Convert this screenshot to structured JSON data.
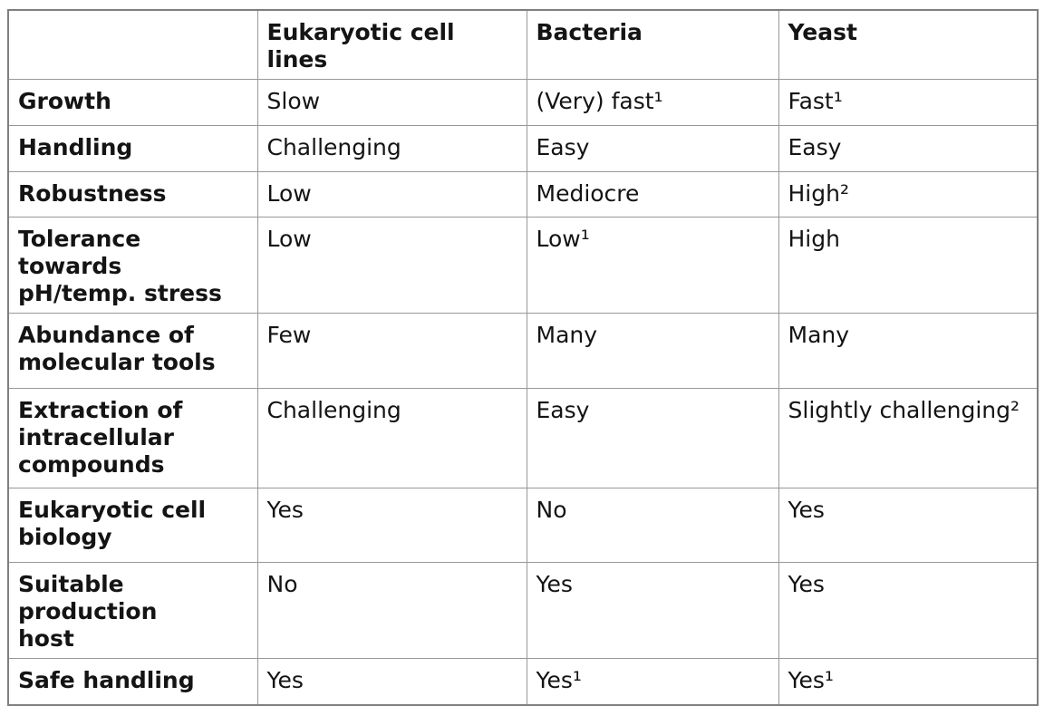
{
  "table": {
    "columns": [
      "",
      "Eukaryotic cell lines",
      "Bacteria",
      "Yeast"
    ],
    "rows": [
      {
        "label": "Growth",
        "cells": [
          "Slow",
          "(Very) fast¹",
          "Fast¹"
        ]
      },
      {
        "label": "Handling",
        "cells": [
          "Challenging",
          "Easy",
          "Easy"
        ]
      },
      {
        "label": "Robustness",
        "cells": [
          "Low",
          "Mediocre",
          "High²"
        ]
      },
      {
        "label": "Tolerance towards\npH/temp. stress",
        "cells": [
          "Low",
          "Low¹",
          "High"
        ]
      },
      {
        "label": "Abundance of\nmolecular tools",
        "cells": [
          "Few",
          "Many",
          "Many"
        ]
      },
      {
        "label": "Extraction of\nintracellular\ncompounds",
        "cells": [
          "Challenging",
          "Easy",
          "Slightly challenging²"
        ]
      },
      {
        "label": "Eukaryotic cell\nbiology",
        "cells": [
          "Yes",
          "No",
          "Yes"
        ]
      },
      {
        "label": "Suitable production\nhost",
        "cells": [
          "No",
          "Yes",
          "Yes"
        ]
      },
      {
        "label": "Safe handling",
        "cells": [
          "Yes",
          "Yes¹",
          "Yes¹"
        ]
      }
    ]
  },
  "colors": {
    "background": "#ffffff",
    "text": "#141414",
    "border_outer": "#7f7f7f",
    "border_inner": "#989898"
  }
}
